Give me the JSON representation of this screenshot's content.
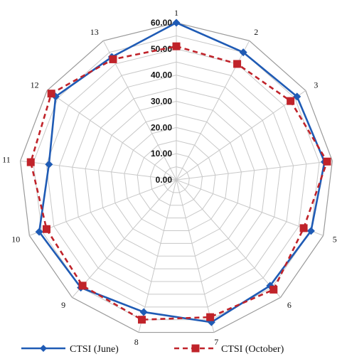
{
  "chart_data": {
    "type": "radar",
    "categories": [
      "1",
      "2",
      "3",
      "4",
      "5",
      "6",
      "7",
      "8",
      "9",
      "10",
      "11",
      "12",
      "13"
    ],
    "tick_labels": [
      "0.00",
      "10.00",
      "20.00",
      "30.00",
      "40.00",
      "50.00",
      "60.00"
    ],
    "rlim": [
      0,
      60
    ],
    "grid": true,
    "legend_position": "bottom",
    "series": [
      {
        "name": "CTSI (June)",
        "values": [
          60.0,
          55.0,
          56.0,
          57.0,
          55.0,
          54.0,
          56.0,
          52.0,
          55.0,
          56.0,
          49.0,
          56.0,
          53.0
        ],
        "color": "#1f5bb5",
        "marker": "diamond",
        "line": "solid"
      },
      {
        "name": "CTSI (October)",
        "values": [
          51.0,
          50.0,
          53.0,
          58.0,
          52.0,
          56.0,
          54.0,
          55.0,
          54.0,
          53.0,
          56.0,
          58.0,
          52.0
        ],
        "color": "#c0232a",
        "marker": "square",
        "line": "dashed"
      }
    ]
  }
}
